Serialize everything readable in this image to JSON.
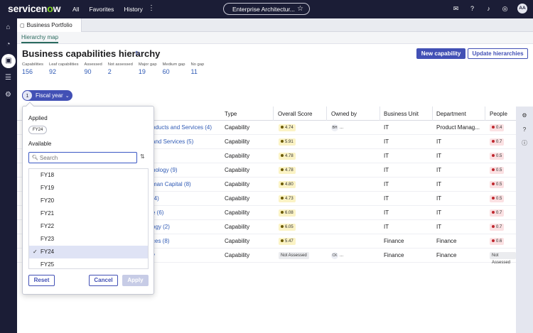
{
  "topnav": {
    "logo_prefix": "servicen",
    "logo_o": "o",
    "logo_suffix": "w",
    "links": [
      "All",
      "Favorites",
      "History"
    ],
    "more": "⋮",
    "app_chip": "Enterprise Architectur...",
    "user_initials": "AA"
  },
  "tabs": {
    "page_tab": "Business Portfolio",
    "sub_tab": "Hierarchy map"
  },
  "header": {
    "title": "Business capabilities hierarchy",
    "new_button": "New capability",
    "update_button": "Update hierarchies"
  },
  "stats": [
    {
      "label": "Capabilities",
      "value": "156"
    },
    {
      "label": "Leaf capabilities",
      "value": "92"
    },
    {
      "label": "Assessed",
      "value": "90"
    },
    {
      "label": "Not assessed",
      "value": "2"
    },
    {
      "label": "Major gap",
      "value": "19"
    },
    {
      "label": "Medium gap",
      "value": "60"
    },
    {
      "label": "No gap",
      "value": "11"
    }
  ],
  "filter": {
    "count": "1",
    "label": "Fiscal year"
  },
  "table": {
    "headers": {
      "type": "Type",
      "score": "Overall Score",
      "owner": "Owned by",
      "unit": "Business Unit",
      "dept": "Department",
      "people": "People"
    },
    "rows": [
      {
        "name": "oducts and Services (4)",
        "type": "Capability",
        "score": "4.74",
        "owner": "BH",
        "owner_more": "...",
        "unit": "IT",
        "dept": "Product Manag...",
        "people": "0.4"
      },
      {
        "name": "and Services (5)",
        "type": "Capability",
        "score": "5.91",
        "owner": "",
        "owner_more": "",
        "unit": "IT",
        "dept": "IT",
        "people": "0.7"
      },
      {
        "name": "",
        "type": "Capability",
        "score": "4.78",
        "owner": "",
        "owner_more": "",
        "unit": "IT",
        "dept": "IT",
        "people": "0.5"
      },
      {
        "name": "nology (9)",
        "type": "Capability",
        "score": "4.78",
        "owner": "",
        "owner_more": "",
        "unit": "IT",
        "dept": "IT",
        "people": "0.5"
      },
      {
        "name": "man Capital (8)",
        "type": "Capability",
        "score": "4.80",
        "owner": "",
        "owner_more": "",
        "unit": "IT",
        "dept": "IT",
        "people": "0.5"
      },
      {
        "name": "(4)",
        "type": "Capability",
        "score": "4.73",
        "owner": "",
        "owner_more": "",
        "unit": "IT",
        "dept": "IT",
        "people": "0.5"
      },
      {
        "name": "e (6)",
        "type": "Capability",
        "score": "6.08",
        "owner": "",
        "owner_more": "",
        "unit": "IT",
        "dept": "IT",
        "people": "0.7"
      },
      {
        "name": "ogy (2)",
        "type": "Capability",
        "score": "6.05",
        "owner": "",
        "owner_more": "",
        "unit": "IT",
        "dept": "IT",
        "people": "0.7"
      },
      {
        "name": "ces (8)",
        "type": "Capability",
        "score": "5.47",
        "owner": "",
        "owner_more": "",
        "unit": "Finance",
        "dept": "Finance",
        "people": "0.6"
      },
      {
        "name": "y",
        "type": "Capability",
        "score": "Not Assessed",
        "owner": "CK",
        "owner_more": "...",
        "unit": "Finance",
        "dept": "Finance",
        "people": "Not Assessed"
      }
    ]
  },
  "popover": {
    "applied_label": "Applied",
    "applied_chip": "FY24",
    "available_label": "Available",
    "search_placeholder": "Search",
    "options": [
      "FY18",
      "FY19",
      "FY20",
      "FY21",
      "FY22",
      "FY23",
      "FY24",
      "FY25"
    ],
    "selected": "FY24",
    "reset": "Reset",
    "cancel": "Cancel",
    "apply": "Apply"
  },
  "colors": {
    "nav_bg": "#1b1d36",
    "accent": "#4250b5",
    "link": "#2f5ab5",
    "logo_green": "#7ed321"
  }
}
